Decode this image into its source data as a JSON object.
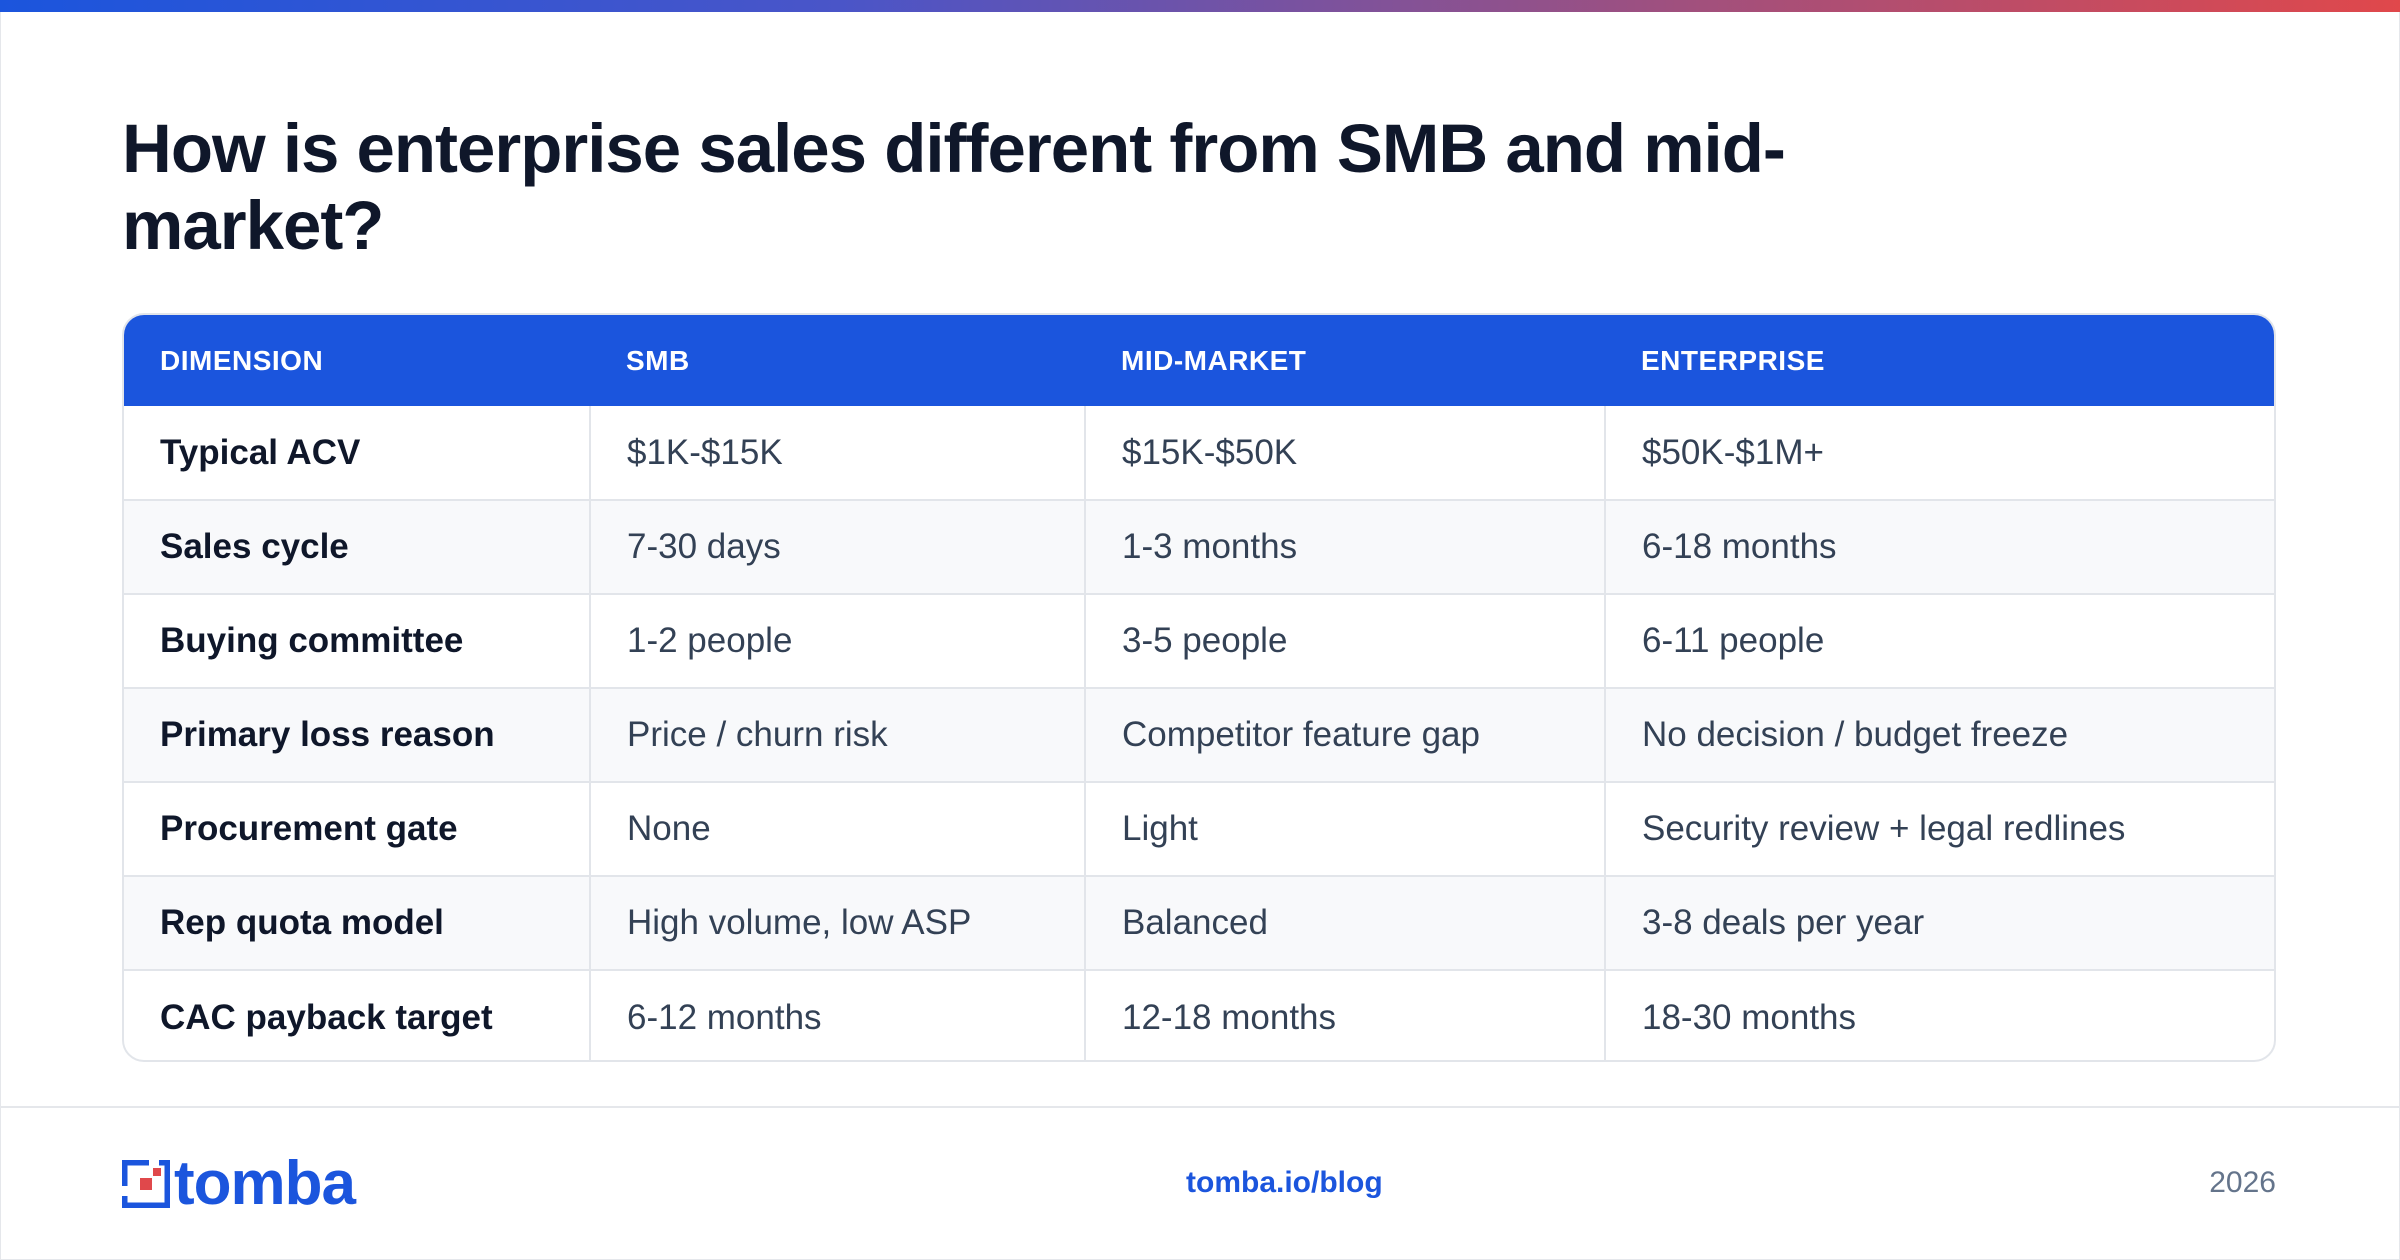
{
  "title": "How is enterprise sales different from SMB and mid-market?",
  "table": {
    "headers": [
      "DIMENSION",
      "SMB",
      "MID-MARKET",
      "ENTERPRISE"
    ],
    "rows": [
      [
        "Typical ACV",
        "$1K-$15K",
        "$15K-$50K",
        "$50K-$1M+"
      ],
      [
        "Sales cycle",
        "7-30 days",
        "1-3 months",
        "6-18 months"
      ],
      [
        "Buying committee",
        "1-2 people",
        "3-5 people",
        "6-11 people"
      ],
      [
        "Primary loss reason",
        "Price / churn risk",
        "Competitor feature gap",
        "No decision / budget freeze"
      ],
      [
        "Procurement gate",
        "None",
        "Light",
        "Security review + legal redlines"
      ],
      [
        "Rep quota model",
        "High volume, low ASP",
        "Balanced",
        "3-8 deals per year"
      ],
      [
        "CAC payback target",
        "6-12 months",
        "12-18 months",
        "18-30 months"
      ]
    ]
  },
  "footer": {
    "logo_text": "tomba",
    "link": "tomba.io/blog",
    "year": "2026"
  },
  "colors": {
    "accent": "#1b55dd",
    "logo_red": "#e0484b",
    "title": "#0f172a"
  }
}
